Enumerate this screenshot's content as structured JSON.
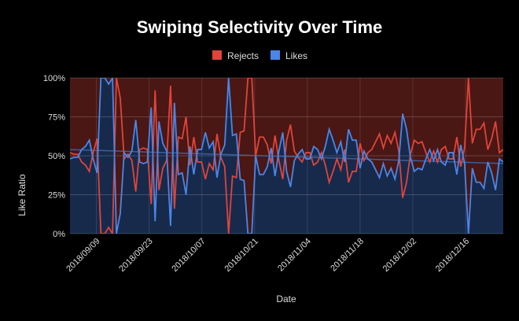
{
  "chart_data": {
    "type": "area",
    "title": "Swiping Selectivity Over Time",
    "xlabel": "Date",
    "ylabel": "Like Ratio",
    "ylim": [
      0,
      100
    ],
    "yticks": [
      "0%",
      "25%",
      "50%",
      "75%",
      "100%"
    ],
    "xticks": [
      "2018/09/09",
      "2018/09/23",
      "2018/10/07",
      "2018/10/21",
      "2018/11/04",
      "2018/11/18",
      "2018/12/02",
      "2018/12/16"
    ],
    "x_start": "2018/09/02",
    "x_end": "2018/12/26",
    "legend_position": "top",
    "colors": {
      "rejects": "#e0443a",
      "likes": "#4a86e8",
      "rejects_fill": "#4a1714",
      "likes_fill": "#172a4c",
      "trend": "#3d5f99"
    },
    "trendline": {
      "start": 54,
      "end": 45
    },
    "series": [
      {
        "name": "Rejects",
        "values": [
          52,
          51,
          51,
          46,
          44,
          40,
          52,
          61,
          0,
          0,
          4,
          0,
          100,
          87,
          48,
          51,
          47,
          27,
          54,
          55,
          54,
          19,
          92,
          28,
          42,
          47,
          95,
          16,
          62,
          61,
          75,
          44,
          62,
          46,
          46,
          35,
          45,
          41,
          64,
          49,
          43,
          0,
          37,
          36,
          65,
          66,
          100,
          100,
          50,
          62,
          62,
          57,
          45,
          63,
          47,
          35,
          60,
          70,
          53,
          49,
          46,
          52,
          52,
          44,
          46,
          52,
          44,
          33,
          40,
          48,
          41,
          54,
          33,
          40,
          40,
          58,
          47,
          52,
          54,
          59,
          64,
          55,
          63,
          58,
          65,
          53,
          23,
          33,
          51,
          60,
          58,
          59,
          52,
          46,
          53,
          46,
          54,
          56,
          48,
          48,
          62,
          43,
          55,
          100,
          58,
          67,
          67,
          71,
          54,
          61,
          72,
          52,
          54
        ]
      },
      {
        "name": "Likes",
        "values": [
          48,
          49,
          49,
          54,
          56,
          60,
          48,
          39,
          100,
          100,
          96,
          100,
          0,
          13,
          52,
          49,
          53,
          73,
          46,
          45,
          46,
          81,
          8,
          72,
          58,
          53,
          5,
          84,
          38,
          39,
          25,
          56,
          38,
          54,
          54,
          65,
          55,
          59,
          36,
          51,
          57,
          100,
          63,
          64,
          35,
          34,
          0,
          0,
          50,
          38,
          38,
          43,
          55,
          37,
          53,
          65,
          40,
          30,
          47,
          51,
          54,
          48,
          48,
          56,
          54,
          48,
          56,
          67,
          60,
          52,
          59,
          46,
          67,
          60,
          60,
          42,
          53,
          48,
          46,
          41,
          36,
          45,
          37,
          42,
          35,
          47,
          77,
          67,
          49,
          40,
          42,
          41,
          48,
          54,
          47,
          54,
          46,
          44,
          52,
          52,
          38,
          57,
          45,
          0,
          42,
          33,
          33,
          29,
          46,
          39,
          28,
          48,
          46
        ]
      }
    ]
  }
}
